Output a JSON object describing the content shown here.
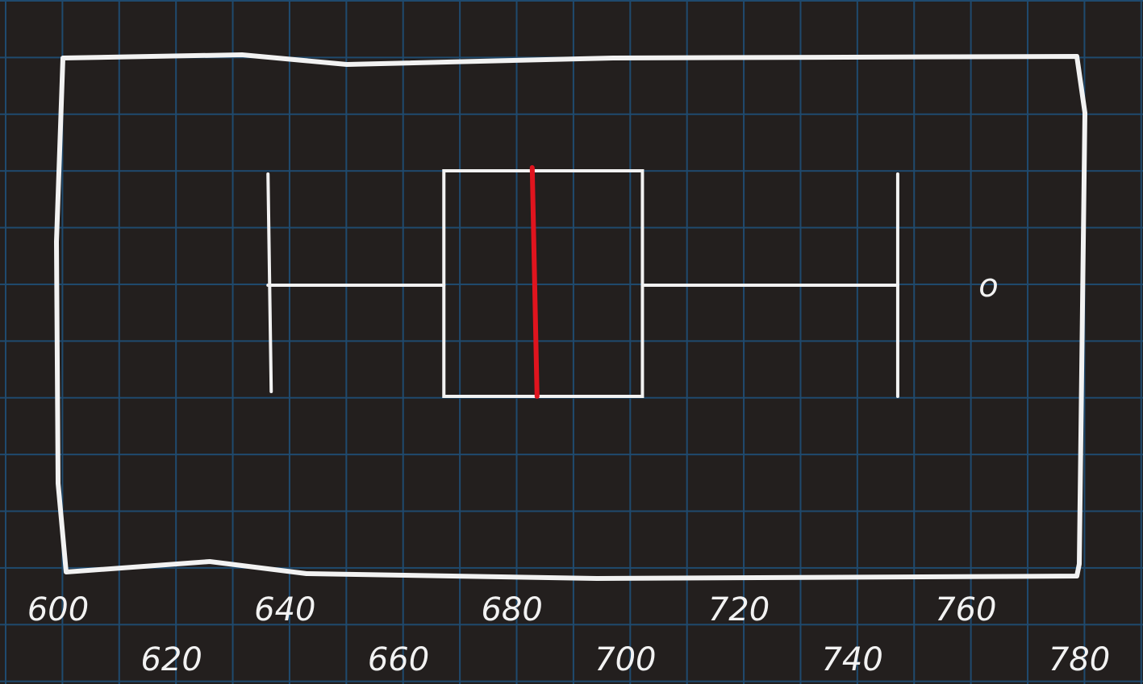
{
  "chart_data": {
    "type": "boxplot",
    "orientation": "horizontal",
    "title": "",
    "xlabel": "",
    "ylabel": "",
    "xlim": [
      600,
      780
    ],
    "xticks_row1": [
      600,
      640,
      680,
      720,
      760
    ],
    "xticks_row2": [
      620,
      660,
      700,
      740,
      780
    ],
    "xtick_labels_row1": [
      "600",
      "640",
      "680",
      "720",
      "760"
    ],
    "xtick_labels_row2": [
      "620",
      "660",
      "700",
      "740",
      "780"
    ],
    "box": {
      "whisker_low": 637,
      "q1": 668,
      "median": 684,
      "q3": 703,
      "whisker_high": 748,
      "outliers": [
        {
          "value": 764,
          "label": "o"
        }
      ]
    },
    "colors": {
      "median": "#e0141e",
      "ink": "#f2f2f2",
      "grid": "#1f4a6e",
      "background": "#231f1e"
    },
    "grid": true,
    "legend": "none"
  }
}
